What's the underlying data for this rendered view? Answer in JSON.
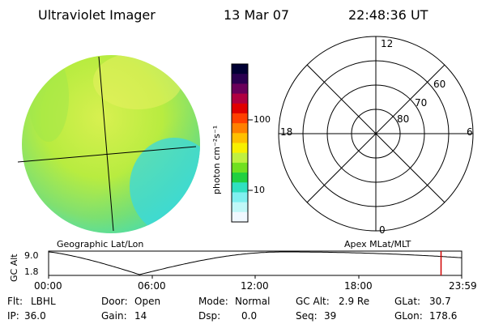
{
  "header": {
    "instrument": "Ultraviolet Imager",
    "date": "13 Mar 07",
    "time": "22:48:36 UT"
  },
  "colorbar": {
    "unit_label": "photon cm⁻²s⁻¹",
    "tick_labels": [
      "100",
      "10"
    ],
    "colors": [
      "#000033",
      "#2a0050",
      "#6a005a",
      "#b00040",
      "#e00000",
      "#ff4000",
      "#ff8000",
      "#ffc000",
      "#f8f000",
      "#c0f040",
      "#70e020",
      "#20d040",
      "#30e0c0",
      "#80f0f0",
      "#c0f8f8",
      "#f0f8ff"
    ]
  },
  "polar_grid": {
    "mlt_labels": {
      "top": "12",
      "left": "18",
      "right": "6",
      "bottom": "0"
    },
    "lat_labels": [
      "60",
      "70",
      "80"
    ]
  },
  "image_labels": {
    "left_caption": "Geographic Lat/Lon",
    "right_caption": "Apex MLat/MLT"
  },
  "altitude_plot": {
    "ylabel": "GC Alt",
    "y_ticks": [
      "9.0",
      "1.8"
    ],
    "x_ticks": [
      "00:00",
      "06:00",
      "12:00",
      "18:00",
      "23:59"
    ],
    "current_time_color": "#d00000",
    "current_time_fraction": 0.95
  },
  "status": {
    "row1": [
      {
        "label": "Flt:",
        "value": "LBHL"
      },
      {
        "label": "Door:",
        "value": "Open"
      },
      {
        "label": "Mode:",
        "value": "Normal"
      },
      {
        "label": "GC Alt:",
        "value": "2.9 Re"
      },
      {
        "label": "GLat:",
        "value": "30.7"
      }
    ],
    "row2": [
      {
        "label": "IP:",
        "value": "36.0"
      },
      {
        "label": "Gain:",
        "value": "14"
      },
      {
        "label": "Dsp:",
        "value": "0.0"
      },
      {
        "label": "Seq:",
        "value": "39"
      },
      {
        "label": "GLon:",
        "value": "178.6"
      }
    ]
  }
}
